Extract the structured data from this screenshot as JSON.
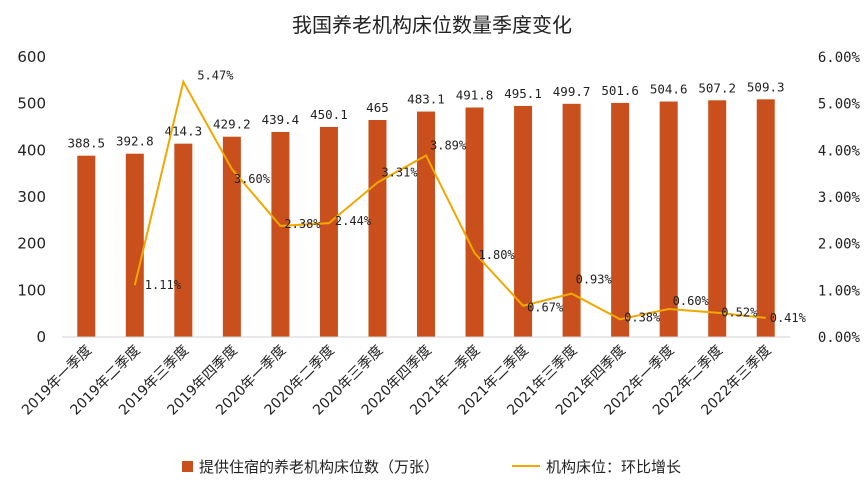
{
  "chart_data": {
    "type": "bar",
    "title": "我国养老机构床位数量季度变化",
    "categories": [
      "2019年一季度",
      "2019年二季度",
      "2019年三季度",
      "2019年四季度",
      "2020年一季度",
      "2020年二季度",
      "2020年三季度",
      "2020年四季度",
      "2021年一季度",
      "2021年二季度",
      "2021年三季度",
      "2021年四季度",
      "2022年一季度",
      "2022年二季度",
      "2022年三季度"
    ],
    "series": [
      {
        "name": "提供住宿的养老机构床位数（万张）",
        "type": "bar",
        "axis": "left",
        "values": [
          388.5,
          392.8,
          414.3,
          429.2,
          439.4,
          450.1,
          465,
          483.1,
          491.8,
          495.1,
          499.7,
          501.6,
          504.6,
          507.2,
          509.3
        ],
        "labels": [
          "388.5",
          "392.8",
          "414.3",
          "429.2",
          "439.4",
          "450.1",
          "465",
          "483.1",
          "491.8",
          "495.1",
          "499.7",
          "501.6",
          "504.6",
          "507.2",
          "509.3"
        ]
      },
      {
        "name": "机构床位：环比增长",
        "type": "line",
        "axis": "right",
        "values": [
          null,
          1.11,
          5.47,
          3.6,
          2.38,
          2.44,
          3.31,
          3.89,
          1.8,
          0.67,
          0.93,
          0.38,
          0.6,
          0.52,
          0.41
        ],
        "labels": [
          "",
          "1.11%",
          "5.47%",
          "3.60%",
          "2.38%",
          "2.44%",
          "3.31%",
          "3.89%",
          "1.80%",
          "0.67%",
          "0.93%",
          "0.38%",
          "0.60%",
          "0.52%",
          "0.41%"
        ]
      }
    ],
    "ylim_left": [
      0,
      600
    ],
    "yticks_left": [
      "0",
      "100",
      "200",
      "300",
      "400",
      "500",
      "600"
    ],
    "ylim_right": [
      0,
      6
    ],
    "yticks_right": [
      "0.00%",
      "1.00%",
      "2.00%",
      "3.00%",
      "4.00%",
      "5.00%",
      "6.00%"
    ],
    "grid": false,
    "legend_position": "bottom",
    "colors": {
      "bar": "#C9501C",
      "line": "#F0A800"
    }
  }
}
